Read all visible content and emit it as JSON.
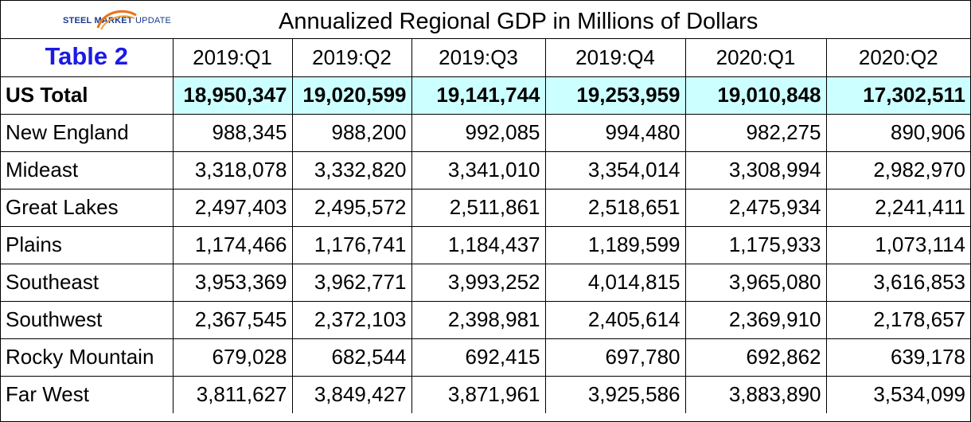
{
  "logo": {
    "brand": "STEEL MARKET",
    "suffix": "UPDATE"
  },
  "title": "Annualized Regional GDP in Millions of Dollars",
  "table_label": "Table 2",
  "columns": [
    "2019:Q1",
    "2019:Q2",
    "2019:Q3",
    "2019:Q4",
    "2020:Q1",
    "2020:Q2"
  ],
  "total": {
    "label": "US Total",
    "values": [
      "18,950,347",
      "19,020,599",
      "19,141,744",
      "19,253,959",
      "19,010,848",
      "17,302,511"
    ]
  },
  "rows": [
    {
      "label": "New England",
      "values": [
        "988,345",
        "988,200",
        "992,085",
        "994,480",
        "982,275",
        "890,906"
      ]
    },
    {
      "label": "Mideast",
      "values": [
        "3,318,078",
        "3,332,820",
        "3,341,010",
        "3,354,014",
        "3,308,994",
        "2,982,970"
      ]
    },
    {
      "label": "Great Lakes",
      "values": [
        "2,497,403",
        "2,495,572",
        "2,511,861",
        "2,518,651",
        "2,475,934",
        "2,241,411"
      ]
    },
    {
      "label": "Plains",
      "values": [
        "1,174,466",
        "1,176,741",
        "1,184,437",
        "1,189,599",
        "1,175,933",
        "1,073,114"
      ]
    },
    {
      "label": "Southeast",
      "values": [
        "3,953,369",
        "3,962,771",
        "3,993,252",
        "4,014,815",
        "3,965,080",
        "3,616,853"
      ]
    },
    {
      "label": "Southwest",
      "values": [
        "2,367,545",
        "2,372,103",
        "2,398,981",
        "2,405,614",
        "2,369,910",
        "2,178,657"
      ]
    },
    {
      "label": "Rocky Mountain",
      "values": [
        "679,028",
        "682,544",
        "692,415",
        "697,780",
        "692,862",
        "639,178"
      ]
    },
    {
      "label": "Far West",
      "values": [
        "3,811,627",
        "3,849,427",
        "3,871,961",
        "3,925,586",
        "3,883,890",
        "3,534,099"
      ]
    }
  ],
  "colors": {
    "highlight": "#ccffff",
    "table_label": "#1a1ae6",
    "logo": "#1a3a8a"
  }
}
